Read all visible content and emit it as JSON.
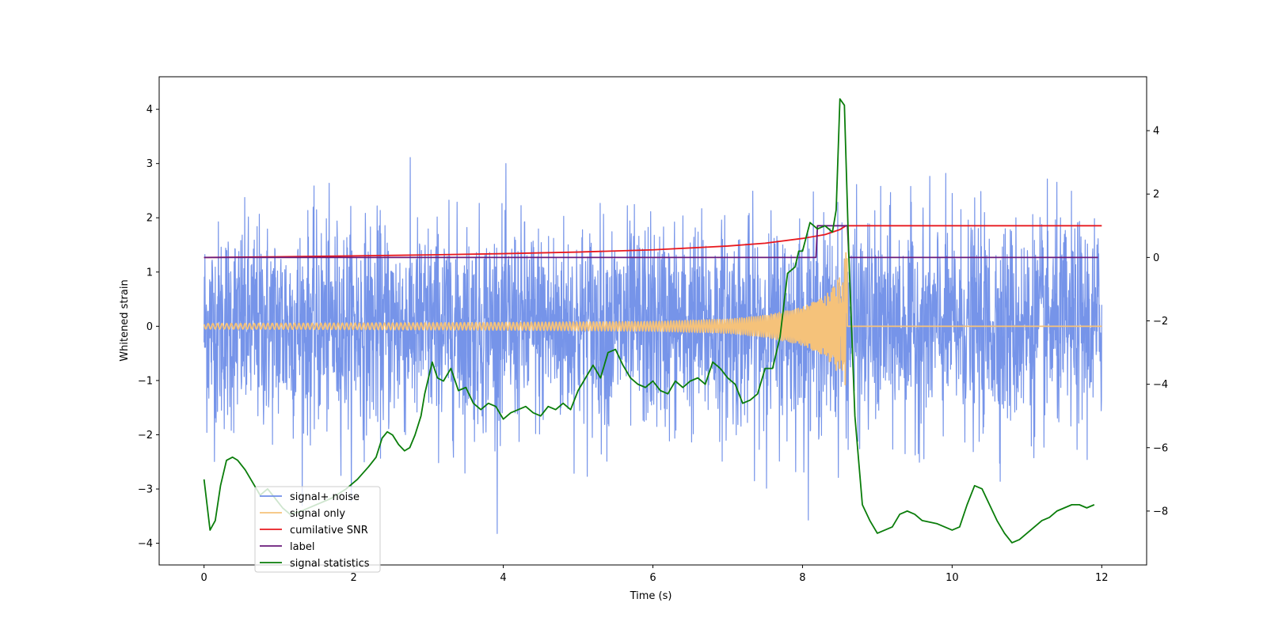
{
  "chart_data": {
    "type": "line",
    "title": "",
    "xlabel": "Time (s)",
    "ylabel": "Whitened strain",
    "y2label": "",
    "xlim": [
      -0.6,
      12.6
    ],
    "ylim": [
      -4.4,
      4.6
    ],
    "y2lim": [
      -9.7,
      5.7
    ],
    "xticks": [
      0,
      2,
      4,
      6,
      8,
      10,
      12
    ],
    "yticks": [
      -4,
      -3,
      -2,
      -1,
      0,
      1,
      2,
      3,
      4
    ],
    "y2ticks": [
      -8,
      -6,
      -4,
      -2,
      0,
      2,
      4
    ],
    "xtick_labels": [
      "0",
      "2",
      "4",
      "6",
      "8",
      "10",
      "12"
    ],
    "ytick_labels": [
      "−4",
      "−3",
      "−2",
      "−1",
      "0",
      "1",
      "2",
      "3",
      "4"
    ],
    "y2tick_labels": [
      "−8",
      "−6",
      "−4",
      "−2",
      "0",
      "2",
      "4"
    ],
    "legend_position": "lower-left",
    "series": [
      {
        "name": "signal+ noise",
        "color": "#6f8ee8",
        "axis": "left",
        "kind": "noise",
        "description_values": {
          "mean": 0,
          "std": 1.0,
          "min": -3.95,
          "max": 3.85,
          "t_start": 0,
          "t_end": 12
        }
      },
      {
        "name": "signal only",
        "color": "#f5c27a",
        "axis": "left",
        "kind": "chirp",
        "envelope": {
          "t": [
            0,
            2,
            4,
            6,
            7,
            7.5,
            8,
            8.3,
            8.5,
            8.6,
            8.62,
            12
          ],
          "amp": [
            0.05,
            0.06,
            0.07,
            0.09,
            0.13,
            0.2,
            0.35,
            0.55,
            0.9,
            1.5,
            0,
            0
          ]
        }
      },
      {
        "name": "cumilative SNR",
        "color": "#e8191f",
        "axis": "right",
        "x": [
          0,
          1,
          2,
          3,
          4,
          5,
          6,
          7,
          7.5,
          8,
          8.3,
          8.5,
          8.58,
          8.6,
          10,
          12
        ],
        "y": [
          0.0,
          0.02,
          0.05,
          0.08,
          0.12,
          0.17,
          0.24,
          0.36,
          0.45,
          0.6,
          0.72,
          0.88,
          1.0,
          1.0,
          1.0,
          1.0
        ]
      },
      {
        "name": "label",
        "color": "#6a1a7a",
        "axis": "right",
        "x": [
          0,
          8.18,
          8.2,
          8.6,
          8.62,
          11.95
        ],
        "y": [
          0,
          0,
          1,
          1,
          0,
          0
        ]
      },
      {
        "name": "signal statistics",
        "color": "#0a7d0a",
        "axis": "right",
        "x": [
          0,
          0.08,
          0.15,
          0.22,
          0.3,
          0.38,
          0.45,
          0.55,
          0.65,
          0.75,
          0.85,
          0.95,
          1.05,
          1.15,
          1.3,
          1.5,
          1.7,
          1.9,
          2.05,
          2.2,
          2.3,
          2.38,
          2.45,
          2.52,
          2.6,
          2.68,
          2.75,
          2.82,
          2.9,
          2.95,
          3.05,
          3.12,
          3.2,
          3.3,
          3.4,
          3.5,
          3.6,
          3.7,
          3.8,
          3.9,
          4.0,
          4.1,
          4.2,
          4.3,
          4.4,
          4.5,
          4.6,
          4.7,
          4.8,
          4.9,
          5.0,
          5.1,
          5.2,
          5.3,
          5.4,
          5.5,
          5.6,
          5.7,
          5.8,
          5.9,
          6.0,
          6.1,
          6.2,
          6.3,
          6.4,
          6.5,
          6.6,
          6.7,
          6.8,
          6.9,
          7.0,
          7.1,
          7.2,
          7.3,
          7.4,
          7.5,
          7.6,
          7.7,
          7.8,
          7.9,
          7.95,
          8.0,
          8.1,
          8.2,
          8.3,
          8.4,
          8.45,
          8.5,
          8.56,
          8.62,
          8.7,
          8.8,
          8.9,
          9.0,
          9.1,
          9.2,
          9.3,
          9.4,
          9.5,
          9.6,
          9.8,
          10.0,
          10.1,
          10.2,
          10.3,
          10.4,
          10.5,
          10.6,
          10.7,
          10.8,
          10.9,
          11.0,
          11.1,
          11.2,
          11.3,
          11.4,
          11.5,
          11.6,
          11.7,
          11.8,
          11.9
        ],
        "y": [
          -7.0,
          -8.6,
          -8.3,
          -7.2,
          -6.4,
          -6.3,
          -6.4,
          -6.7,
          -7.1,
          -7.5,
          -7.3,
          -7.6,
          -7.9,
          -8.1,
          -8.0,
          -7.8,
          -7.6,
          -7.3,
          -7.0,
          -6.6,
          -6.3,
          -5.7,
          -5.5,
          -5.6,
          -5.9,
          -6.1,
          -6.0,
          -5.6,
          -5.0,
          -4.3,
          -3.3,
          -3.8,
          -3.9,
          -3.5,
          -4.2,
          -4.1,
          -4.6,
          -4.8,
          -4.6,
          -4.7,
          -5.1,
          -4.9,
          -4.8,
          -4.7,
          -4.9,
          -5.0,
          -4.7,
          -4.8,
          -4.6,
          -4.8,
          -4.2,
          -3.8,
          -3.4,
          -3.8,
          -3.0,
          -2.9,
          -3.4,
          -3.8,
          -4.0,
          -4.1,
          -3.9,
          -4.2,
          -4.3,
          -3.9,
          -4.1,
          -3.9,
          -3.8,
          -4.0,
          -3.3,
          -3.5,
          -3.8,
          -4.0,
          -4.6,
          -4.5,
          -4.3,
          -3.5,
          -3.5,
          -2.5,
          -0.5,
          -0.3,
          0.2,
          0.2,
          1.1,
          0.9,
          1.0,
          0.8,
          1.5,
          5.0,
          4.8,
          0.0,
          -5.0,
          -7.8,
          -8.3,
          -8.7,
          -8.6,
          -8.5,
          -8.1,
          -8.0,
          -8.1,
          -8.3,
          -8.4,
          -8.6,
          -8.5,
          -7.8,
          -7.2,
          -7.3,
          -7.8,
          -8.3,
          -8.7,
          -9.0,
          -8.9,
          -8.7,
          -8.5,
          -8.3,
          -8.2,
          -8.0,
          -7.9,
          -7.8,
          -7.8,
          -7.9,
          -7.8
        ]
      }
    ]
  }
}
